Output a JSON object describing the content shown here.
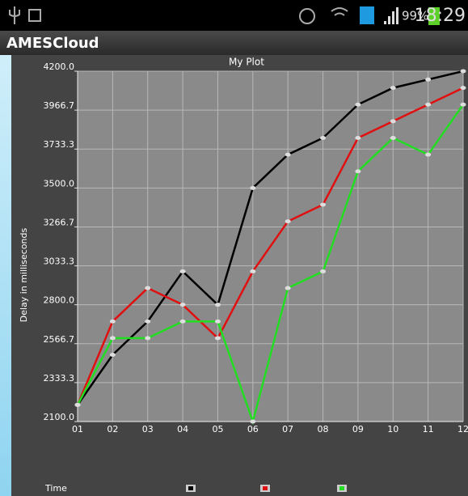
{
  "status_bar": {
    "battery": "99%",
    "time": "18:29"
  },
  "app_bar": {
    "title": "AMESCloud"
  },
  "chart_data": {
    "type": "line",
    "title": "My Plot",
    "xlabel": "Time",
    "ylabel": "Delay in milliseconds",
    "categories": [
      "01",
      "02",
      "03",
      "04",
      "05",
      "06",
      "07",
      "08",
      "09",
      "10",
      "11",
      "12"
    ],
    "series": [
      {
        "color": "#000000",
        "values": [
          2200,
          2500,
          2700,
          3000,
          2800,
          3500,
          3700,
          3800,
          4000,
          4100,
          4150,
          4200
        ]
      },
      {
        "color": "#e01010",
        "values": [
          2200,
          2700,
          2900,
          2800,
          2600,
          3000,
          3300,
          3400,
          3800,
          3900,
          4000,
          4100
        ]
      },
      {
        "color": "#22dd22",
        "values": [
          2200,
          2600,
          2600,
          2700,
          2700,
          2100,
          2900,
          3000,
          3600,
          3800,
          3700,
          4000
        ]
      }
    ],
    "ylim": [
      2100,
      4200
    ],
    "yticks": [
      {
        "value": 2100,
        "label": "2100.0"
      },
      2333.3,
      2566.7,
      {
        "value": 2800,
        "label": "2800.0"
      },
      3033.3,
      3266.7,
      {
        "value": 3500,
        "label": "3500.0"
      },
      3733.3,
      3966.7,
      {
        "value": 4200,
        "label": "4200.0"
      }
    ],
    "grid": true
  }
}
